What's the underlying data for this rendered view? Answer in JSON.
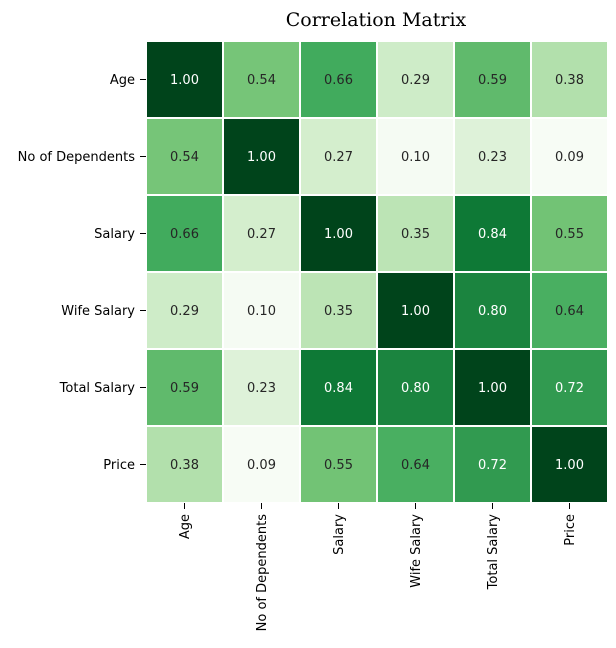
{
  "chart_data": {
    "type": "heatmap",
    "title": "Correlation Matrix",
    "row_labels": [
      "Age",
      "No of Dependents",
      "Salary",
      "Wife Salary",
      "Total Salary",
      "Price"
    ],
    "col_labels": [
      "Age",
      "No of Dependents",
      "Salary",
      "Wife Salary",
      "Total Salary",
      "Price"
    ],
    "values": [
      [
        1.0,
        0.54,
        0.66,
        0.29,
        0.59,
        0.38
      ],
      [
        0.54,
        1.0,
        0.27,
        0.1,
        0.23,
        0.09
      ],
      [
        0.66,
        0.27,
        1.0,
        0.35,
        0.84,
        0.55
      ],
      [
        0.29,
        0.1,
        0.35,
        1.0,
        0.8,
        0.64
      ],
      [
        0.59,
        0.23,
        0.84,
        0.8,
        1.0,
        0.72
      ],
      [
        0.38,
        0.09,
        0.55,
        0.64,
        0.72,
        1.0
      ]
    ],
    "cell_labels": [
      [
        "1.00",
        "0.54",
        "0.66",
        "0.29",
        "0.59",
        "0.38"
      ],
      [
        "0.54",
        "1.00",
        "0.27",
        "0.10",
        "0.23",
        "0.09"
      ],
      [
        "0.66",
        "0.27",
        "1.00",
        "0.35",
        "0.84",
        "0.55"
      ],
      [
        "0.29",
        "0.10",
        "0.35",
        "1.00",
        "0.80",
        "0.64"
      ],
      [
        "0.59",
        "0.23",
        "0.84",
        "0.80",
        "1.00",
        "0.72"
      ],
      [
        "0.38",
        "0.09",
        "0.55",
        "0.64",
        "0.72",
        "1.00"
      ]
    ],
    "colormap": "Greens",
    "value_range": [
      0.09,
      1.0
    ],
    "colorbar": false,
    "grid_line_color": "#ffffff"
  }
}
